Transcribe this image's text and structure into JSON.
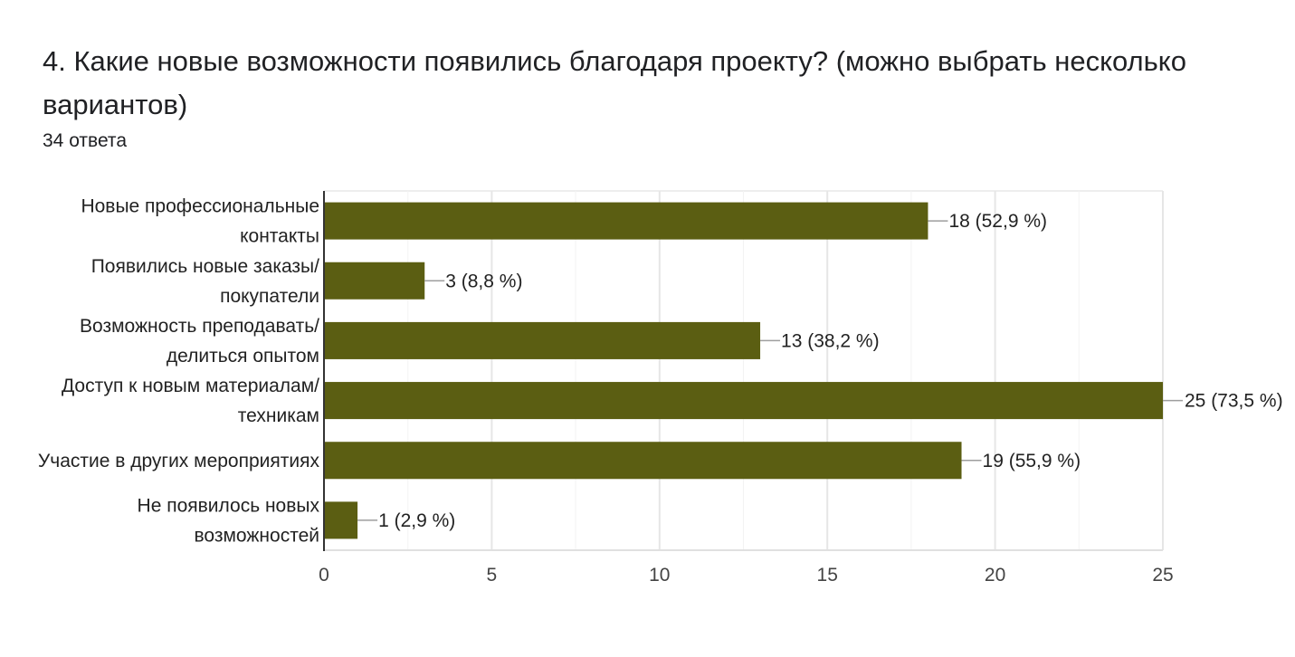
{
  "header": {
    "title": "4. Какие новые возможности появились благодаря проекту? (можно выбрать несколько вариантов)",
    "responses": "34 ответа"
  },
  "colors": {
    "bar": "#5b5e12",
    "grid": "#eeeeee",
    "axis": "#333333",
    "leader": "#9e9e9e"
  },
  "chart_data": {
    "type": "bar",
    "orientation": "horizontal",
    "categories": [
      [
        "Новые профессиональные",
        "контакты"
      ],
      [
        "Появились новые заказы/",
        "покупатели"
      ],
      [
        "Возможность преподавать/",
        "делиться опытом"
      ],
      [
        "Доступ к новым материалам/",
        "техникам"
      ],
      [
        "Участие в других мероприятиях"
      ],
      [
        "Не появилось новых",
        "возможностей"
      ]
    ],
    "values": [
      18,
      3,
      13,
      25,
      19,
      1
    ],
    "data_labels": [
      "18 (52,9 %)",
      "3 (8,8 %)",
      "13 (38,2 %)",
      "25 (73,5 %)",
      "19 (55,9 %)",
      "1 (2,9 %)"
    ],
    "xlim": [
      0,
      25
    ],
    "xticks": [
      0,
      5,
      10,
      15,
      20,
      25
    ],
    "minor_gridlines": true,
    "legend": "none"
  }
}
